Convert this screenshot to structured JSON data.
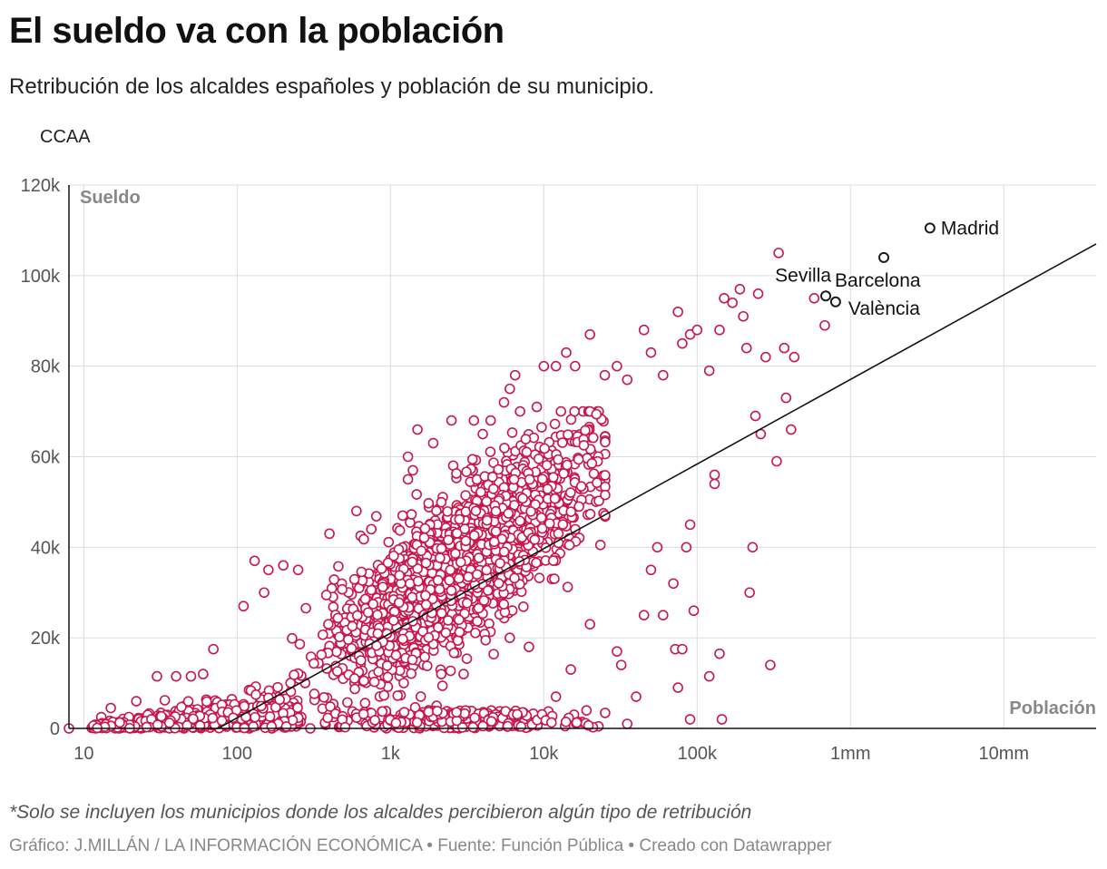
{
  "header": {
    "title": "El sueldo va con la población",
    "subtitle": "Retribución de los alcaldes españoles y población de su municipio.",
    "filter_label": "CCAA"
  },
  "footer": {
    "note": "*Solo se incluyen los municipios donde los alcaldes percibieron algún tipo de retribución",
    "credit": "Gráfico: J.MILLÁN / LA INFORMACIÓN ECONÓMICA • Fuente: Función Pública • Creado con Datawrapper"
  },
  "colors": {
    "points": "#c8174a",
    "highlight": "#1b1b1b",
    "trend": "#111111",
    "grid": "#dcdcdc"
  },
  "chart_data": {
    "type": "scatter",
    "xlabel": "Población",
    "ylabel": "Sueldo",
    "x_scale": "log",
    "xlim": [
      8,
      40000000
    ],
    "ylim": [
      0,
      120000
    ],
    "x_ticks": [
      {
        "value": 10,
        "label": "10"
      },
      {
        "value": 100,
        "label": "100"
      },
      {
        "value": 1000,
        "label": "1k"
      },
      {
        "value": 10000,
        "label": "10k"
      },
      {
        "value": 100000,
        "label": "100k"
      },
      {
        "value": 1000000,
        "label": "1mm"
      },
      {
        "value": 10000000,
        "label": "10mm"
      }
    ],
    "y_ticks": [
      {
        "value": 0,
        "label": "0"
      },
      {
        "value": 20000,
        "label": "20k"
      },
      {
        "value": 40000,
        "label": "40k"
      },
      {
        "value": 60000,
        "label": "60k"
      },
      {
        "value": 80000,
        "label": "80k"
      },
      {
        "value": 100000,
        "label": "100k"
      },
      {
        "value": 120000,
        "label": "120k"
      }
    ],
    "grid": true,
    "trend_line": [
      [
        75,
        0
      ],
      [
        40000000,
        107000
      ]
    ],
    "highlighted": [
      {
        "name": "Madrid",
        "x": 3300000,
        "y": 110500
      },
      {
        "name": "Barcelona",
        "x": 1650000,
        "y": 104000
      },
      {
        "name": "Sevilla",
        "x": 690000,
        "y": 95500
      },
      {
        "name": "València",
        "x": 800000,
        "y": 94200
      }
    ],
    "series": [
      {
        "points": [
          [
            8,
            0
          ],
          [
            13,
            2500
          ],
          [
            15,
            4500
          ],
          [
            17,
            0
          ],
          [
            22,
            6000
          ],
          [
            30,
            11500
          ],
          [
            40,
            11500
          ],
          [
            50,
            11500
          ],
          [
            60,
            12000
          ],
          [
            70,
            17500
          ],
          [
            110,
            27000
          ],
          [
            130,
            37000
          ],
          [
            150,
            30000
          ],
          [
            160,
            35000
          ],
          [
            200,
            36000
          ],
          [
            250,
            35000
          ],
          [
            400,
            43000
          ],
          [
            600,
            48000
          ],
          [
            750,
            44000
          ],
          [
            1200,
            47000
          ],
          [
            1300,
            55000
          ],
          [
            1400,
            57000
          ],
          [
            1500,
            66000
          ],
          [
            1300,
            60000
          ],
          [
            1900,
            63000
          ],
          [
            2500,
            68000
          ],
          [
            3500,
            68000
          ],
          [
            4000,
            65000
          ],
          [
            4500,
            68000
          ],
          [
            5500,
            72000
          ],
          [
            6000,
            75000
          ],
          [
            6500,
            78000
          ],
          [
            7000,
            70000
          ],
          [
            9000,
            71000
          ],
          [
            10000,
            80000
          ],
          [
            12000,
            80000
          ],
          [
            14000,
            83000
          ],
          [
            16000,
            80000
          ],
          [
            20000,
            87000
          ],
          [
            25000,
            78000
          ],
          [
            30000,
            80000
          ],
          [
            35000,
            77000
          ],
          [
            45000,
            88000
          ],
          [
            50000,
            83000
          ],
          [
            60000,
            78000
          ],
          [
            75000,
            92000
          ],
          [
            80000,
            85000
          ],
          [
            90000,
            87000
          ],
          [
            100000,
            88000
          ],
          [
            120000,
            79000
          ],
          [
            140000,
            88000
          ],
          [
            150000,
            95000
          ],
          [
            170000,
            94000
          ],
          [
            190000,
            97000
          ],
          [
            200000,
            91000
          ],
          [
            210000,
            84000
          ],
          [
            250000,
            96000
          ],
          [
            280000,
            82000
          ],
          [
            340000,
            105000
          ],
          [
            370000,
            84000
          ],
          [
            430000,
            82000
          ],
          [
            580000,
            95000
          ],
          [
            680000,
            89000
          ],
          [
            380000,
            73000
          ],
          [
            330000,
            59000
          ],
          [
            410000,
            66000
          ],
          [
            260000,
            65000
          ],
          [
            240000,
            69000
          ],
          [
            230000,
            40000
          ],
          [
            220000,
            30000
          ],
          [
            300000,
            14000
          ],
          [
            130000,
            56000
          ],
          [
            130000,
            54000
          ],
          [
            90000,
            45000
          ],
          [
            85000,
            40000
          ],
          [
            95000,
            26000
          ],
          [
            70000,
            32000
          ],
          [
            72000,
            17500
          ],
          [
            80000,
            17500
          ],
          [
            75000,
            9000
          ],
          [
            140000,
            16500
          ],
          [
            120000,
            11500
          ],
          [
            90000,
            2000
          ],
          [
            145000,
            2000
          ],
          [
            60000,
            25000
          ],
          [
            55000,
            40000
          ],
          [
            50000,
            35000
          ],
          [
            45000,
            25000
          ],
          [
            40000,
            7000
          ],
          [
            35000,
            1000
          ],
          [
            32000,
            14000
          ],
          [
            30000,
            17000
          ],
          [
            20000,
            23000
          ],
          [
            15000,
            13000
          ],
          [
            12000,
            7000
          ],
          [
            9000,
            2000
          ],
          [
            8000,
            18000
          ],
          [
            6000,
            20000
          ],
          [
            5500,
            26000
          ],
          [
            3000,
            12000
          ],
          [
            2000,
            5000
          ],
          [
            1000,
            2000
          ],
          [
            500,
            1000
          ],
          [
            300,
            0
          ],
          [
            200,
            2000
          ],
          [
            120,
            0
          ],
          [
            90,
            1500
          ],
          [
            60,
            2000
          ],
          [
            45,
            0
          ],
          [
            35,
            3000
          ],
          [
            25,
            1000
          ],
          [
            20,
            0
          ],
          [
            18,
            500
          ]
        ]
      }
    ]
  }
}
